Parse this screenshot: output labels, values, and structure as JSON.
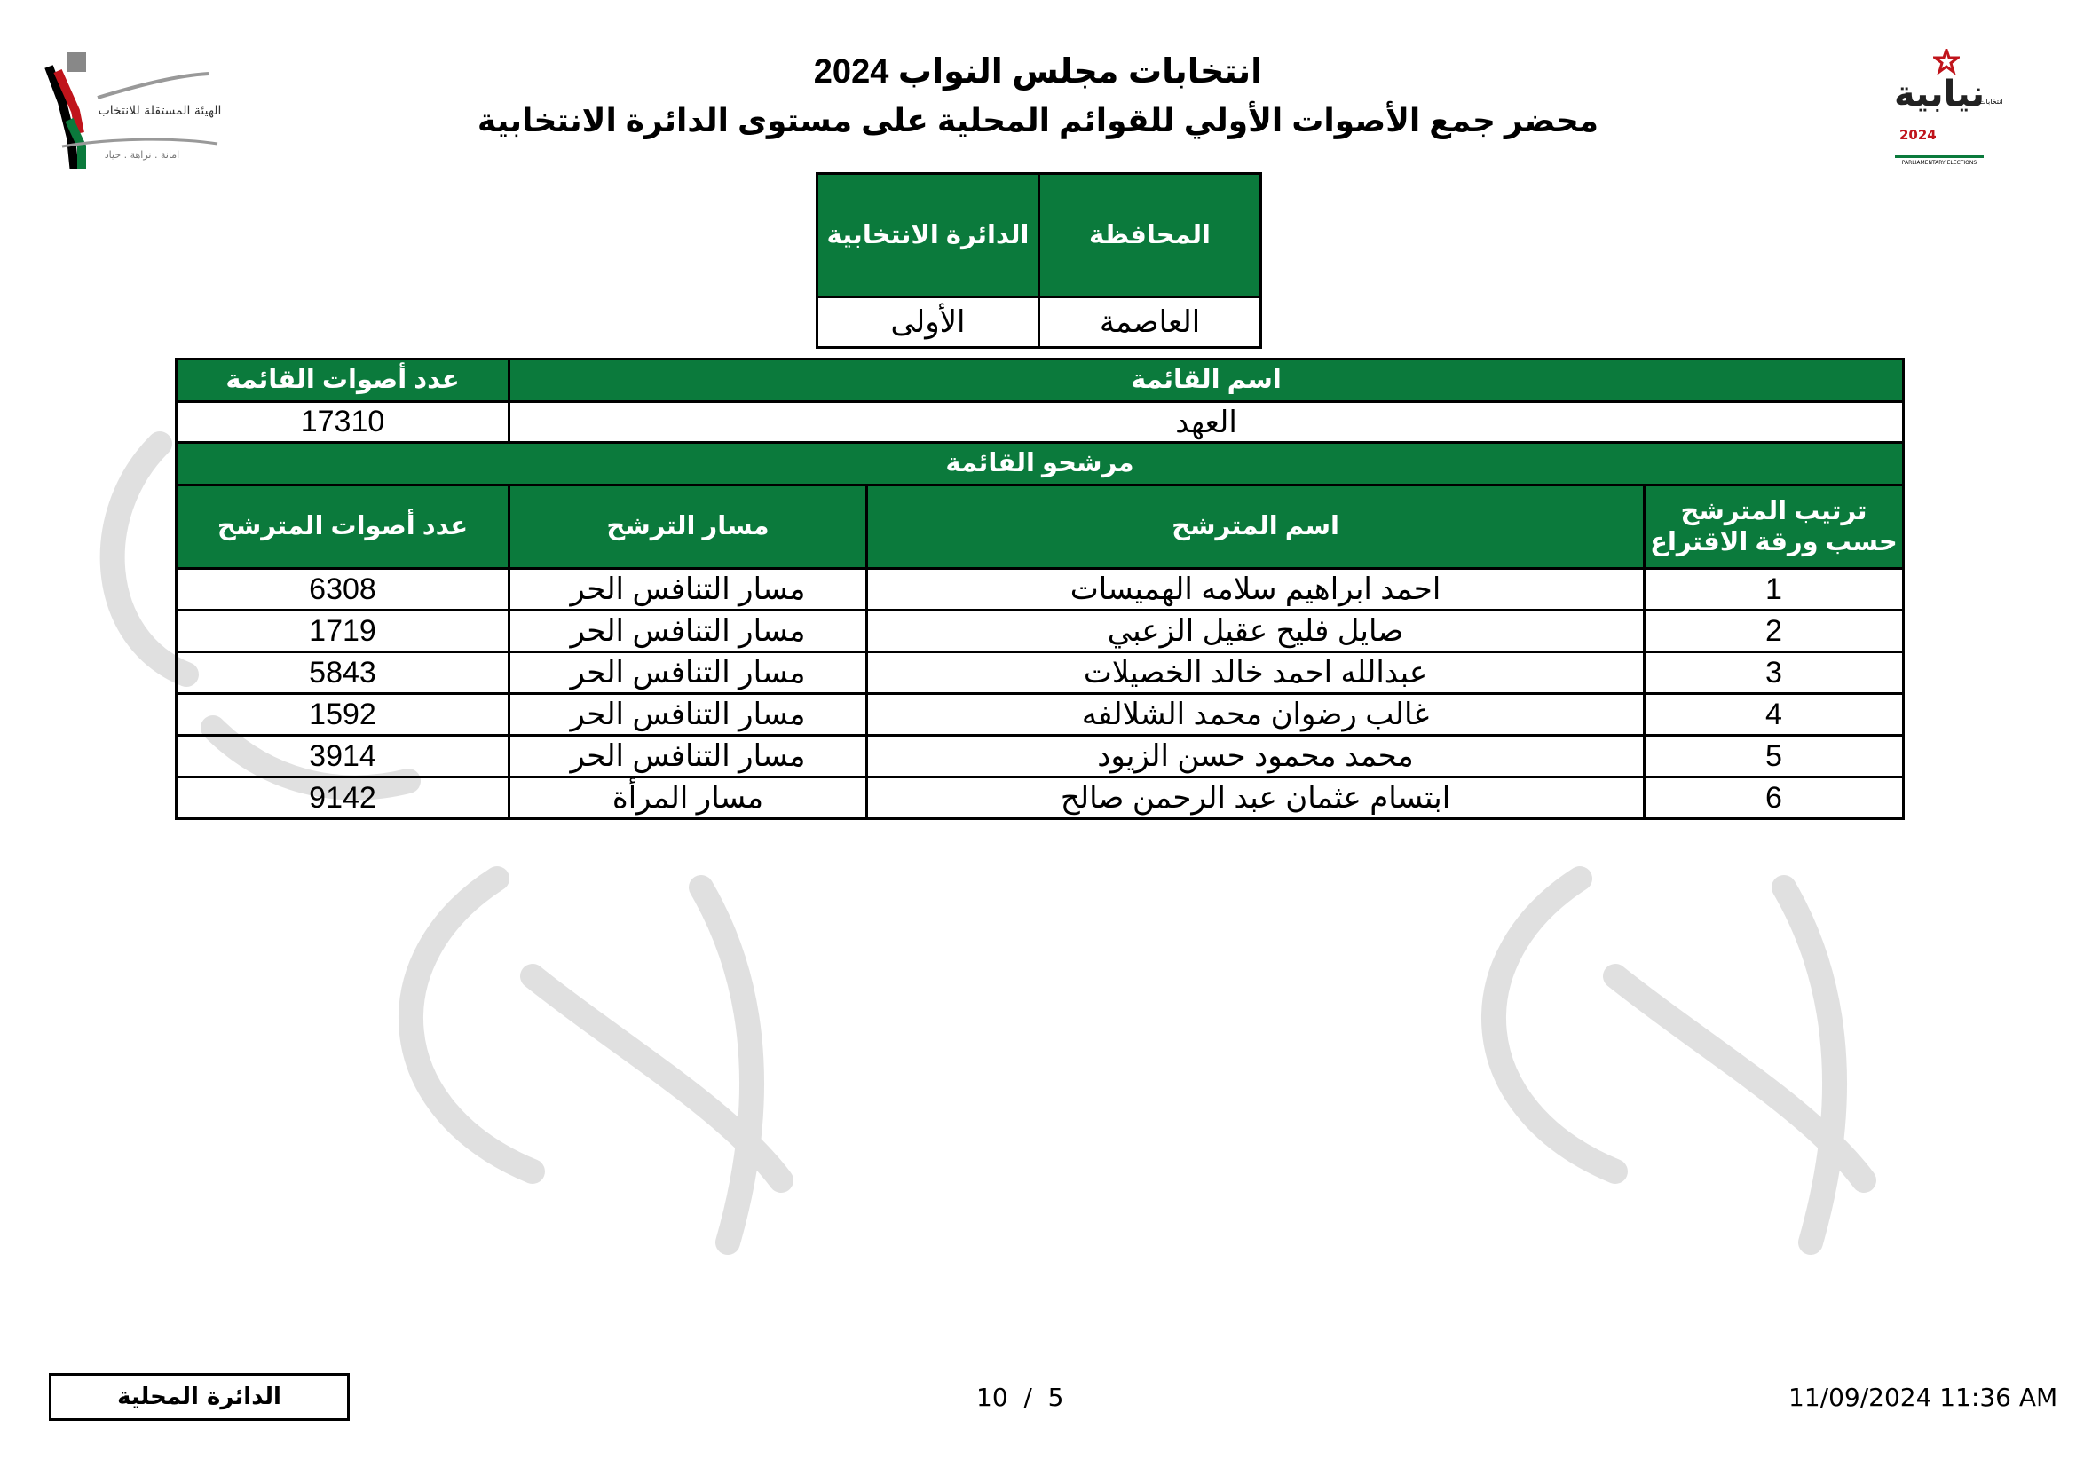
{
  "header": {
    "title": "انتخابات مجلس النواب 2024",
    "subtitle": "محضر جمع الأصوات الأولي للقوائم المحلية على مستوى الدائرة الانتخابية",
    "left_logo": {
      "text": "الهيئة المستقلة للانتخاب",
      "tagline": "امانة . نزاهة . حياد"
    },
    "right_logo": {
      "text": "نيابية",
      "small": "انتخابات",
      "year": "2024",
      "english": "PARLIAMENTARY ELECTIONS"
    }
  },
  "location": {
    "governorate_label": "المحافظة",
    "district_label": "الدائرة الانتخابية",
    "governorate": "العاصمة",
    "district": "الأولى"
  },
  "list": {
    "name_label": "اسم القائمة",
    "votes_label": "عدد أصوات القائمة",
    "name": "العهد",
    "votes": "17310",
    "candidates_label": "مرشحو القائمة"
  },
  "candidates": {
    "headers": [
      "ترتيب المترشح حسب ورقة الاقتراع",
      "اسم المترشح",
      "مسار الترشح",
      "عدد أصوات المترشح"
    ],
    "rows": [
      {
        "rank": "1",
        "name": "احمد ابراهيم سلامه الهميسات",
        "path": "مسار التنافس الحر",
        "votes": "6308"
      },
      {
        "rank": "2",
        "name": "صايل فليح عقيل الزعبي",
        "path": "مسار التنافس الحر",
        "votes": "1719"
      },
      {
        "rank": "3",
        "name": "عبدالله احمد خالد الخصيلات",
        "path": "مسار التنافس الحر",
        "votes": "5843"
      },
      {
        "rank": "4",
        "name": "غالب رضوان محمد الشلالفه",
        "path": "مسار التنافس الحر",
        "votes": "1592"
      },
      {
        "rank": "5",
        "name": "محمد محمود حسن الزيود",
        "path": "مسار التنافس الحر",
        "votes": "3914"
      },
      {
        "rank": "6",
        "name": "ابتسام عثمان عبد الرحمن صالح",
        "path": "مسار المرأة",
        "votes": "9142"
      }
    ]
  },
  "footer": {
    "box_label": "الدائرة المحلية",
    "page": "10  /  5",
    "timestamp": "11/09/2024 11:36 AM"
  },
  "colors": {
    "header_green": "#0b7a3c",
    "watermark_gray": "#9a9a9a"
  }
}
